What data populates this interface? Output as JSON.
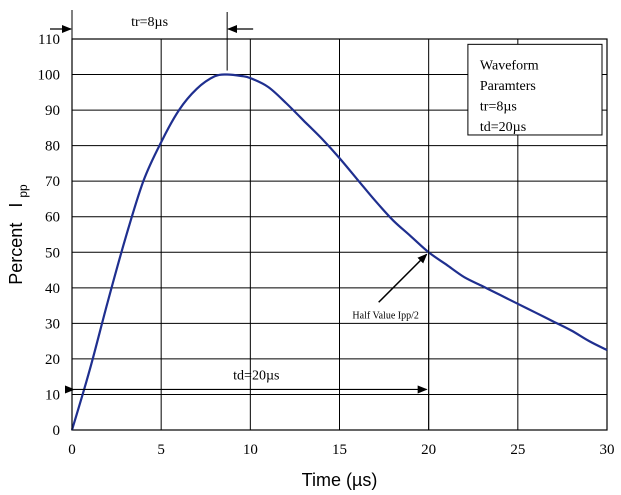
{
  "chart_data": {
    "type": "line",
    "title": "",
    "xlabel": "Time (µs)",
    "ylabel": {
      "main": "Percent",
      "symbol": "I",
      "subscript": "pp"
    },
    "xlim": [
      0,
      30
    ],
    "ylim": [
      0,
      110
    ],
    "xticks": [
      0,
      5,
      10,
      15,
      20,
      25,
      30
    ],
    "yticks": [
      0,
      10,
      20,
      30,
      40,
      50,
      60,
      70,
      80,
      90,
      100,
      110
    ],
    "grid": true,
    "series": [
      {
        "color": "#1f2f8f",
        "x": [
          0,
          1,
          2,
          3,
          4,
          5,
          6,
          7,
          8,
          8.7,
          9.5,
          10,
          11,
          12,
          13,
          14,
          15,
          16,
          17,
          18,
          19,
          20,
          21,
          22,
          23,
          24,
          25,
          26,
          27,
          28,
          29,
          30
        ],
        "y": [
          0,
          17,
          36,
          54,
          70,
          81,
          90,
          96,
          99.5,
          100,
          99.6,
          99,
          96.5,
          92,
          87,
          82,
          76.5,
          70.5,
          64.5,
          59,
          54.5,
          50,
          46.5,
          43,
          40.5,
          38,
          35.5,
          33,
          30.5,
          28,
          25,
          22.5
        ]
      }
    ],
    "legend": {
      "placement": "top-right",
      "lines": [
        "Waveform",
        "Paramters",
        "tr=8µs",
        "td=20µs"
      ]
    },
    "annotations": {
      "tr": {
        "text": "tr=8µs",
        "from_x": 0,
        "to_x": 8.7
      },
      "td": {
        "text": "td=20µs",
        "from_x": 0,
        "to_x": 20,
        "y": 10
      },
      "half_value": {
        "text": "Half Value Ipp/2",
        "point": [
          20,
          50
        ]
      }
    }
  }
}
